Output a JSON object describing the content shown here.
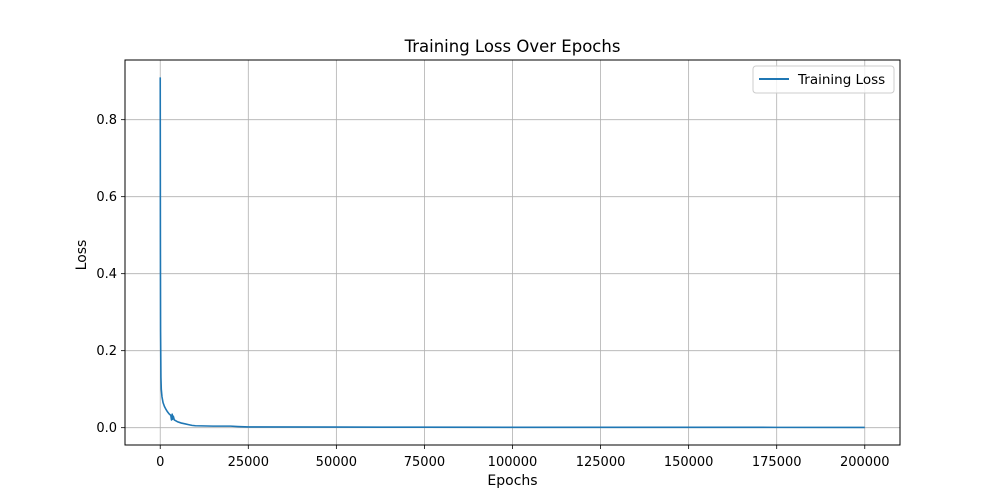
{
  "chart_data": {
    "type": "line",
    "title": "Training Loss Over Epochs",
    "xlabel": "Epochs",
    "ylabel": "Loss",
    "xlim": [
      -10000,
      210000
    ],
    "ylim": [
      -0.045,
      0.955
    ],
    "xticks": [
      0,
      25000,
      50000,
      75000,
      100000,
      125000,
      150000,
      175000,
      200000
    ],
    "yticks": [
      0.0,
      0.2,
      0.4,
      0.6,
      0.8
    ],
    "ytick_labels": [
      "0.0",
      "0.2",
      "0.4",
      "0.6",
      "0.8"
    ],
    "grid": true,
    "legend_position": "top-right",
    "series": [
      {
        "name": "Training Loss",
        "color": "#1f77b4",
        "x": [
          0,
          50,
          100,
          200,
          300,
          500,
          800,
          1200,
          1600,
          2000,
          2500,
          3000,
          3200,
          3400,
          3500,
          3700,
          4000,
          5000,
          6000,
          7000,
          8000,
          9000,
          10000,
          15000,
          20000,
          22000,
          25000,
          50000,
          75000,
          100000,
          125000,
          150000,
          175000,
          200000
        ],
        "y": [
          0.91,
          0.5,
          0.25,
          0.13,
          0.1,
          0.08,
          0.065,
          0.055,
          0.048,
          0.042,
          0.036,
          0.032,
          0.02,
          0.035,
          0.022,
          0.03,
          0.02,
          0.015,
          0.012,
          0.01,
          0.008,
          0.006,
          0.005,
          0.004,
          0.004,
          0.003,
          0.002,
          0.0015,
          0.0012,
          0.001,
          0.001,
          0.001,
          0.0008,
          0.0007
        ]
      }
    ]
  }
}
